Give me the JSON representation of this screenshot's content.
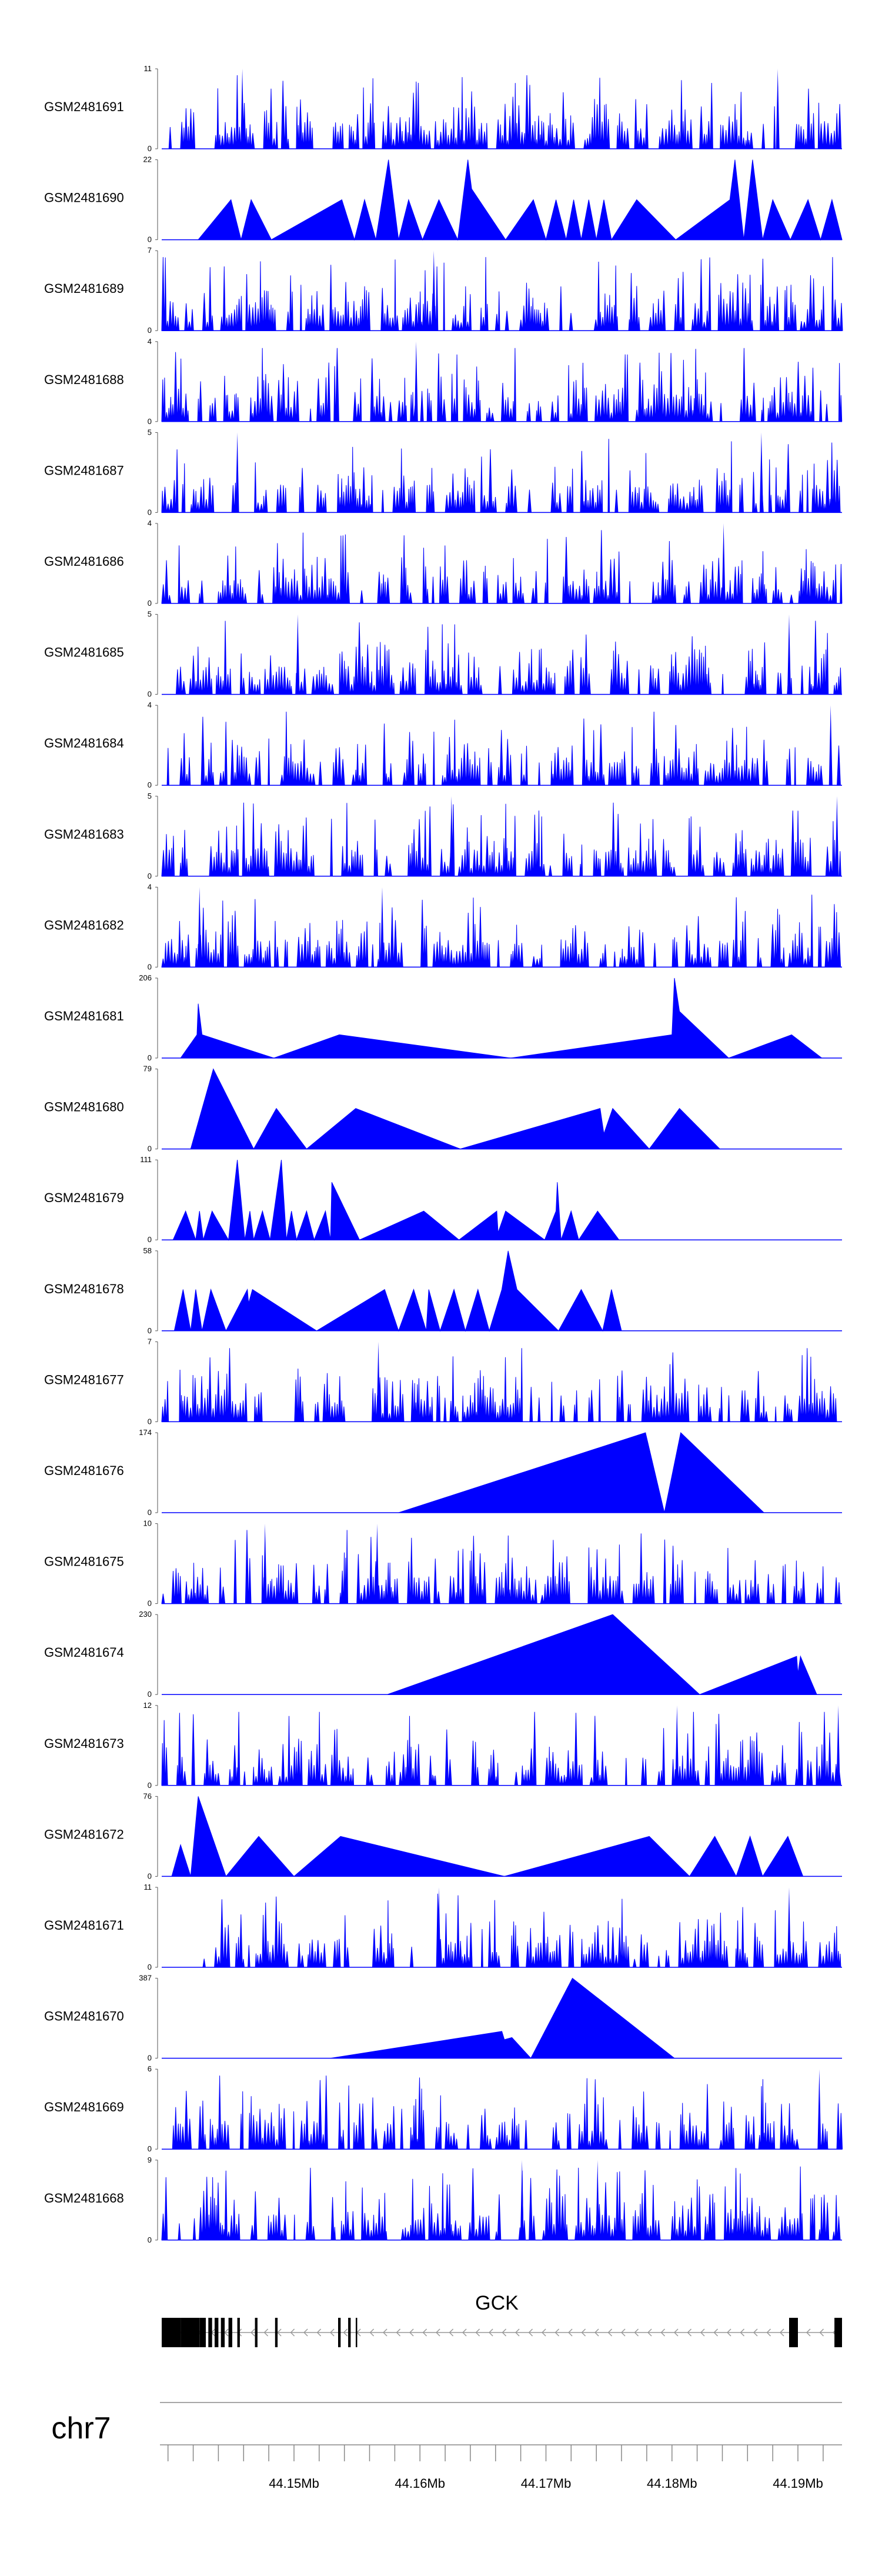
{
  "chart_data": {
    "type": "area",
    "title": "",
    "chromosome": "chr7",
    "xlim": [
      44.1395,
      44.1935
    ],
    "axis_ticks": [
      {
        "value": 44.15,
        "label": "44.15Mb"
      },
      {
        "value": 44.16,
        "label": "44.16Mb"
      },
      {
        "value": 44.17,
        "label": "44.17Mb"
      },
      {
        "value": 44.18,
        "label": "44.18Mb"
      },
      {
        "value": 44.19,
        "label": "44.19Mb"
      }
    ],
    "minor_tick_step": 0.002,
    "series_color": "#0000FF",
    "tracks": [
      {
        "name": "GSM2481691",
        "ymax": 11,
        "ymax_label": "11",
        "ymin_label": "0",
        "mode": "dense",
        "seed": 11,
        "start": 44.1395,
        "end": 44.1935,
        "peaks": [
          [
            44.1459,
            11
          ],
          [
            44.1884,
            11
          ]
        ]
      },
      {
        "name": "GSM2481690",
        "ymax": 22,
        "ymax_label": "22",
        "ymin_label": "0",
        "mode": "sparse",
        "points": [
          [
            44.1424,
            0
          ],
          [
            44.145,
            11
          ],
          [
            44.1458,
            0
          ],
          [
            44.1466,
            11
          ],
          [
            44.1482,
            0
          ],
          [
            44.1538,
            11
          ],
          [
            44.1548,
            0
          ],
          [
            44.1556,
            11
          ],
          [
            44.1565,
            0
          ],
          [
            44.1575,
            22
          ],
          [
            44.1583,
            0
          ],
          [
            44.1591,
            11
          ],
          [
            44.1602,
            0
          ],
          [
            44.1615,
            11
          ],
          [
            44.163,
            0
          ],
          [
            44.1638,
            22
          ],
          [
            44.1641,
            14
          ],
          [
            44.1668,
            0
          ],
          [
            44.169,
            11
          ],
          [
            44.17,
            0
          ],
          [
            44.1708,
            11
          ],
          [
            44.1716,
            0
          ],
          [
            44.1722,
            11
          ],
          [
            44.1728,
            0
          ],
          [
            44.1734,
            11
          ],
          [
            44.174,
            0
          ],
          [
            44.1746,
            11
          ],
          [
            44.1752,
            0
          ],
          [
            44.1772,
            11
          ],
          [
            44.1803,
            0
          ],
          [
            44.1846,
            11
          ],
          [
            44.185,
            22
          ],
          [
            44.1857,
            0
          ],
          [
            44.1864,
            22
          ],
          [
            44.1872,
            0
          ],
          [
            44.188,
            11
          ],
          [
            44.1894,
            0
          ],
          [
            44.1908,
            11
          ],
          [
            44.1918,
            0
          ],
          [
            44.1927,
            11
          ],
          [
            44.1935,
            0
          ]
        ]
      },
      {
        "name": "GSM2481689",
        "ymax": 7,
        "ymax_label": "7",
        "ymin_label": "0",
        "mode": "dense",
        "seed": 89,
        "start": 44.1395,
        "end": 44.1935,
        "peaks": [
          [
            44.1611,
            7
          ]
        ]
      },
      {
        "name": "GSM2481688",
        "ymax": 4,
        "ymax_label": "4",
        "ymin_label": "0",
        "mode": "dense",
        "seed": 88,
        "start": 44.1395,
        "end": 44.1935,
        "peaks": [
          [
            44.1597,
            4
          ]
        ]
      },
      {
        "name": "GSM2481687",
        "ymax": 5,
        "ymax_label": "5",
        "ymin_label": "0",
        "mode": "dense",
        "seed": 87,
        "start": 44.1395,
        "end": 44.1935,
        "peaks": [
          [
            44.1455,
            5
          ],
          [
            44.1871,
            5
          ]
        ]
      },
      {
        "name": "GSM2481686",
        "ymax": 4,
        "ymax_label": "4",
        "ymin_label": "0",
        "mode": "dense",
        "seed": 86,
        "start": 44.1395,
        "end": 44.1935,
        "peaks": [
          [
            44.1841,
            4
          ]
        ]
      },
      {
        "name": "GSM2481685",
        "ymax": 5,
        "ymax_label": "5",
        "ymin_label": "0",
        "mode": "dense",
        "seed": 85,
        "start": 44.1395,
        "end": 44.1935,
        "peaks": [
          [
            44.1503,
            5
          ],
          [
            44.1893,
            5
          ]
        ]
      },
      {
        "name": "GSM2481684",
        "ymax": 4,
        "ymax_label": "4",
        "ymin_label": "0",
        "mode": "dense",
        "seed": 84,
        "start": 44.1395,
        "end": 44.1935,
        "peaks": [
          [
            44.1926,
            4
          ]
        ]
      },
      {
        "name": "GSM2481683",
        "ymax": 5,
        "ymax_label": "5",
        "ymin_label": "0",
        "mode": "dense",
        "seed": 83,
        "start": 44.1395,
        "end": 44.1935,
        "peaks": [
          [
            44.1625,
            5
          ],
          [
            44.1931,
            5
          ]
        ]
      },
      {
        "name": "GSM2481682",
        "ymax": 4,
        "ymax_label": "4",
        "ymin_label": "0",
        "mode": "dense",
        "seed": 82,
        "start": 44.1395,
        "end": 44.1935,
        "peaks": [
          [
            44.1425,
            4
          ],
          [
            44.157,
            4
          ]
        ]
      },
      {
        "name": "GSM2481681",
        "ymax": 206,
        "ymax_label": "206",
        "ymin_label": "0",
        "mode": "sparse",
        "points": [
          [
            44.141,
            0
          ],
          [
            44.1423,
            60
          ],
          [
            44.1424,
            140
          ],
          [
            44.1427,
            60
          ],
          [
            44.1484,
            0
          ],
          [
            44.1536,
            60
          ],
          [
            44.1672,
            0
          ],
          [
            44.18,
            60
          ],
          [
            44.1802,
            206
          ],
          [
            44.1806,
            120
          ],
          [
            44.1845,
            0
          ],
          [
            44.1895,
            60
          ],
          [
            44.1919,
            0
          ]
        ]
      },
      {
        "name": "GSM2481680",
        "ymax": 79,
        "ymax_label": "79",
        "ymin_label": "0",
        "mode": "sparse",
        "points": [
          [
            44.1418,
            0
          ],
          [
            44.1436,
            79
          ],
          [
            44.1468,
            0
          ],
          [
            44.1486,
            40
          ],
          [
            44.151,
            0
          ],
          [
            44.1549,
            40
          ],
          [
            44.1632,
            0
          ],
          [
            44.1743,
            40
          ],
          [
            44.1746,
            15
          ],
          [
            44.1753,
            40
          ],
          [
            44.1782,
            0
          ],
          [
            44.1806,
            40
          ],
          [
            44.1838,
            0
          ]
        ]
      },
      {
        "name": "GSM2481679",
        "ymax": 111,
        "ymax_label": "111",
        "ymin_label": "0",
        "mode": "sparse",
        "points": [
          [
            44.1404,
            0
          ],
          [
            44.1414,
            40
          ],
          [
            44.1422,
            0
          ],
          [
            44.1425,
            40
          ],
          [
            44.1428,
            0
          ],
          [
            44.1435,
            40
          ],
          [
            44.1448,
            0
          ],
          [
            44.1455,
            111
          ],
          [
            44.1461,
            0
          ],
          [
            44.1465,
            40
          ],
          [
            44.1468,
            0
          ],
          [
            44.1475,
            40
          ],
          [
            44.1481,
            0
          ],
          [
            44.149,
            111
          ],
          [
            44.1494,
            0
          ],
          [
            44.1498,
            40
          ],
          [
            44.1502,
            0
          ],
          [
            44.151,
            40
          ],
          [
            44.1516,
            0
          ],
          [
            44.1525,
            40
          ],
          [
            44.1529,
            0
          ],
          [
            44.153,
            80
          ],
          [
            44.1552,
            0
          ],
          [
            44.1603,
            40
          ],
          [
            44.1631,
            0
          ],
          [
            44.1661,
            40
          ],
          [
            44.1662,
            10
          ],
          [
            44.1668,
            40
          ],
          [
            44.1699,
            0
          ],
          [
            44.1708,
            40
          ],
          [
            44.1709,
            80
          ],
          [
            44.1712,
            0
          ],
          [
            44.172,
            40
          ],
          [
            44.1726,
            0
          ],
          [
            44.1741,
            40
          ],
          [
            44.1758,
            0
          ]
        ]
      },
      {
        "name": "GSM2481678",
        "ymax": 58,
        "ymax_label": "58",
        "ymin_label": "0",
        "mode": "sparse",
        "points": [
          [
            44.1405,
            0
          ],
          [
            44.1412,
            30
          ],
          [
            44.1418,
            0
          ],
          [
            44.1422,
            30
          ],
          [
            44.1427,
            0
          ],
          [
            44.1434,
            30
          ],
          [
            44.1446,
            0
          ],
          [
            44.1463,
            30
          ],
          [
            44.1464,
            20
          ],
          [
            44.1467,
            30
          ],
          [
            44.1518,
            0
          ],
          [
            44.1572,
            30
          ],
          [
            44.1583,
            0
          ],
          [
            44.1595,
            30
          ],
          [
            44.1605,
            0
          ],
          [
            44.1607,
            30
          ],
          [
            44.1616,
            0
          ],
          [
            44.1627,
            30
          ],
          [
            44.1636,
            0
          ],
          [
            44.1646,
            30
          ],
          [
            44.1655,
            0
          ],
          [
            44.1665,
            30
          ],
          [
            44.167,
            58
          ],
          [
            44.1677,
            30
          ],
          [
            44.171,
            0
          ],
          [
            44.1728,
            30
          ],
          [
            44.1745,
            0
          ],
          [
            44.1752,
            30
          ],
          [
            44.176,
            0
          ]
        ]
      },
      {
        "name": "GSM2481677",
        "ymax": 7,
        "ymax_label": "7",
        "ymin_label": "0",
        "mode": "dense",
        "seed": 77,
        "start": 44.1395,
        "end": 44.1935,
        "peaks": [
          [
            44.1567,
            7
          ]
        ]
      },
      {
        "name": "GSM2481676",
        "ymax": 174,
        "ymax_label": "174",
        "ymin_label": "0",
        "mode": "sparse",
        "points": [
          [
            44.1583,
            0
          ],
          [
            44.1779,
            174
          ],
          [
            44.1794,
            0
          ],
          [
            44.1807,
            174
          ],
          [
            44.1873,
            0
          ]
        ]
      },
      {
        "name": "GSM2481675",
        "ymax": 10,
        "ymax_label": "10",
        "ymin_label": "0",
        "mode": "dense",
        "seed": 75,
        "start": 44.1395,
        "end": 44.1935,
        "peaks": [
          [
            44.1477,
            10
          ],
          [
            44.1566,
            10
          ]
        ]
      },
      {
        "name": "GSM2481674",
        "ymax": 230,
        "ymax_label": "230",
        "ymin_label": "0",
        "mode": "sparse",
        "points": [
          [
            44.1574,
            0
          ],
          [
            44.1753,
            230
          ],
          [
            44.1822,
            0
          ],
          [
            44.1899,
            110
          ],
          [
            44.19,
            60
          ],
          [
            44.1902,
            110
          ],
          [
            44.1915,
            0
          ]
        ]
      },
      {
        "name": "GSM2481673",
        "ymax": 12,
        "ymax_label": "12",
        "ymin_label": "0",
        "mode": "dense",
        "seed": 73,
        "start": 44.1395,
        "end": 44.1935,
        "peaks": [
          [
            44.1804,
            12
          ],
          [
            44.1932,
            12
          ]
        ]
      },
      {
        "name": "GSM2481672",
        "ymax": 76,
        "ymax_label": "76",
        "ymin_label": "0",
        "mode": "sparse",
        "points": [
          [
            44.1403,
            0
          ],
          [
            44.141,
            30
          ],
          [
            44.1418,
            0
          ],
          [
            44.1424,
            76
          ],
          [
            44.1446,
            0
          ],
          [
            44.1472,
            38
          ],
          [
            44.15,
            0
          ],
          [
            44.1537,
            38
          ],
          [
            44.1667,
            0
          ],
          [
            44.1782,
            38
          ],
          [
            44.1814,
            0
          ],
          [
            44.1834,
            38
          ],
          [
            44.1851,
            0
          ],
          [
            44.1862,
            38
          ],
          [
            44.1872,
            0
          ],
          [
            44.1892,
            38
          ],
          [
            44.1904,
            0
          ]
        ]
      },
      {
        "name": "GSM2481671",
        "ymax": 11,
        "ymax_label": "11",
        "ymin_label": "0",
        "mode": "dense",
        "seed": 71,
        "start": 44.1422,
        "end": 44.1935,
        "peaks": [
          [
            44.1615,
            11
          ],
          [
            44.1893,
            11
          ]
        ]
      },
      {
        "name": "GSM2481670",
        "ymax": 387,
        "ymax_label": "387",
        "ymin_label": "0",
        "mode": "sparse",
        "points": [
          [
            44.1529,
            0
          ],
          [
            44.1665,
            130
          ],
          [
            44.1667,
            90
          ],
          [
            44.1673,
            100
          ],
          [
            44.1688,
            0
          ],
          [
            44.1721,
            387
          ],
          [
            44.1802,
            0
          ]
        ]
      },
      {
        "name": "GSM2481669",
        "ymax": 6,
        "ymax_label": "6",
        "ymin_label": "0",
        "mode": "dense",
        "seed": 69,
        "start": 44.1395,
        "end": 44.1935,
        "peaks": [
          [
            44.1917,
            6
          ]
        ]
      },
      {
        "name": "GSM2481668",
        "ymax": 9,
        "ymax_label": "9",
        "ymin_label": "0",
        "mode": "dense",
        "seed": 68,
        "start": 44.1395,
        "end": 44.1935,
        "peaks": [
          [
            44.1681,
            9
          ],
          [
            44.1741,
            9
          ]
        ]
      }
    ],
    "gene": {
      "name": "GCK",
      "strand": "-",
      "txStart": 44.1395,
      "txEnd": 44.1935,
      "exons": [
        [
          44.1395,
          44.141
        ],
        [
          44.141,
          44.1425
        ],
        [
          44.1425,
          44.143
        ],
        [
          44.1432,
          44.1435
        ],
        [
          44.1437,
          44.144
        ],
        [
          44.1442,
          44.1445
        ],
        [
          44.1448,
          44.1451
        ],
        [
          44.1455,
          44.1457
        ],
        [
          44.1469,
          44.1471
        ],
        [
          44.1485,
          44.1487
        ],
        [
          44.1535,
          44.1537
        ],
        [
          44.1543,
          44.1545
        ],
        [
          44.1549,
          44.155
        ],
        [
          44.1893,
          44.19
        ],
        [
          44.1929,
          44.1935
        ]
      ]
    }
  }
}
